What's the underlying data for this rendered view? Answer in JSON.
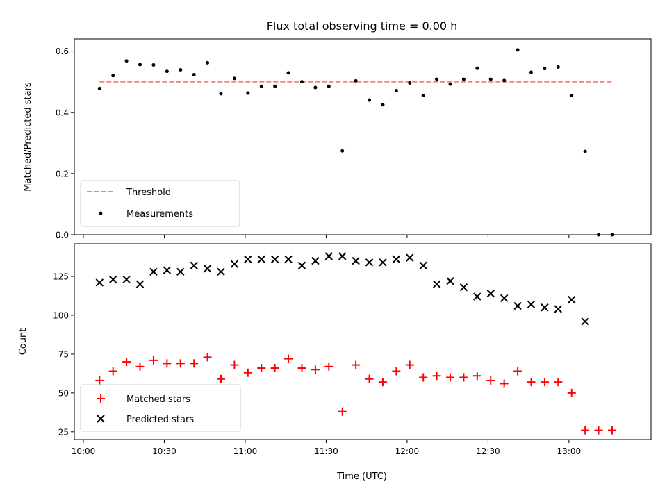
{
  "chart_data": [
    {
      "type": "scatter",
      "title": "Flux total observing time = 0.00 h",
      "xlabel": "",
      "ylabel": "Matched/Predicted stars",
      "ylim": [
        0,
        0.64
      ],
      "yticks": [
        "0.0",
        "0.2",
        "0.4",
        "0.6"
      ],
      "legend": "lower-left",
      "series": [
        {
          "name": "Threshold",
          "kind": "dashed-line",
          "color": "#ff7f7f",
          "x": [
            "10:06",
            "13:16"
          ],
          "values": [
            0.5,
            0.5
          ]
        },
        {
          "name": "Measurements",
          "kind": "dot",
          "color": "#000000",
          "x": [
            "10:06",
            "10:11",
            "10:16",
            "10:21",
            "10:26",
            "10:31",
            "10:36",
            "10:41",
            "10:46",
            "10:51",
            "10:56",
            "11:01",
            "11:06",
            "11:11",
            "11:16",
            "11:21",
            "11:26",
            "11:31",
            "11:36",
            "11:41",
            "11:46",
            "11:51",
            "11:56",
            "12:01",
            "12:06",
            "12:11",
            "12:16",
            "12:21",
            "12:26",
            "12:31",
            "12:36",
            "12:41",
            "12:46",
            "12:51",
            "12:56",
            "13:01",
            "13:06",
            "13:11",
            "13:16"
          ],
          "values": [
            0.478,
            0.52,
            0.568,
            0.556,
            0.555,
            0.534,
            0.539,
            0.523,
            0.562,
            0.461,
            0.511,
            0.463,
            0.485,
            0.485,
            0.529,
            0.5,
            0.481,
            0.485,
            0.274,
            0.503,
            0.44,
            0.425,
            0.471,
            0.496,
            0.455,
            0.508,
            0.492,
            0.508,
            0.544,
            0.508,
            0.504,
            0.604,
            0.531,
            0.543,
            0.548,
            0.455,
            0.272,
            0.0,
            0.0
          ]
        }
      ]
    },
    {
      "type": "scatter",
      "title": "",
      "xlabel": "Time (UTC)",
      "ylabel": "Count",
      "ylim": [
        20,
        146
      ],
      "yticks": [
        "25",
        "50",
        "75",
        "100",
        "125"
      ],
      "xticks": [
        "10:00",
        "10:30",
        "11:00",
        "11:30",
        "12:00",
        "12:30",
        "13:00"
      ],
      "legend": "lower-left",
      "series": [
        {
          "name": "Matched stars",
          "kind": "plus",
          "color": "#ff0000",
          "x": [
            "10:06",
            "10:11",
            "10:16",
            "10:21",
            "10:26",
            "10:31",
            "10:36",
            "10:41",
            "10:46",
            "10:51",
            "10:56",
            "11:01",
            "11:06",
            "11:11",
            "11:16",
            "11:21",
            "11:26",
            "11:31",
            "11:36",
            "11:41",
            "11:46",
            "11:51",
            "11:56",
            "12:01",
            "12:06",
            "12:11",
            "12:16",
            "12:21",
            "12:26",
            "12:31",
            "12:36",
            "12:41",
            "12:46",
            "12:51",
            "12:56",
            "13:01",
            "13:06",
            "13:11",
            "13:16"
          ],
          "values": [
            58,
            64,
            70,
            67,
            71,
            69,
            69,
            69,
            73,
            59,
            68,
            63,
            66,
            66,
            72,
            66,
            65,
            67,
            38,
            68,
            59,
            57,
            64,
            68,
            60,
            61,
            60,
            60,
            61,
            58,
            56,
            64,
            57,
            57,
            57,
            50,
            26,
            26,
            26
          ]
        },
        {
          "name": "Predicted stars",
          "kind": "cross",
          "color": "#000000",
          "x": [
            "10:06",
            "10:11",
            "10:16",
            "10:21",
            "10:26",
            "10:31",
            "10:36",
            "10:41",
            "10:46",
            "10:51",
            "10:56",
            "11:01",
            "11:06",
            "11:11",
            "11:16",
            "11:21",
            "11:26",
            "11:31",
            "11:36",
            "11:41",
            "11:46",
            "11:51",
            "11:56",
            "12:01",
            "12:06",
            "12:11",
            "12:16",
            "12:21",
            "12:26",
            "12:31",
            "12:36",
            "12:41",
            "12:46",
            "12:51",
            "12:56",
            "13:01",
            "13:06"
          ],
          "values": [
            121,
            123,
            123,
            120,
            128,
            129,
            128,
            132,
            130,
            128,
            133,
            136,
            136,
            136,
            136,
            132,
            135,
            138,
            138,
            135,
            134,
            134,
            136,
            137,
            132,
            120,
            122,
            118,
            112,
            114,
            111,
            106,
            107,
            105,
            104,
            110,
            96
          ]
        }
      ]
    }
  ]
}
